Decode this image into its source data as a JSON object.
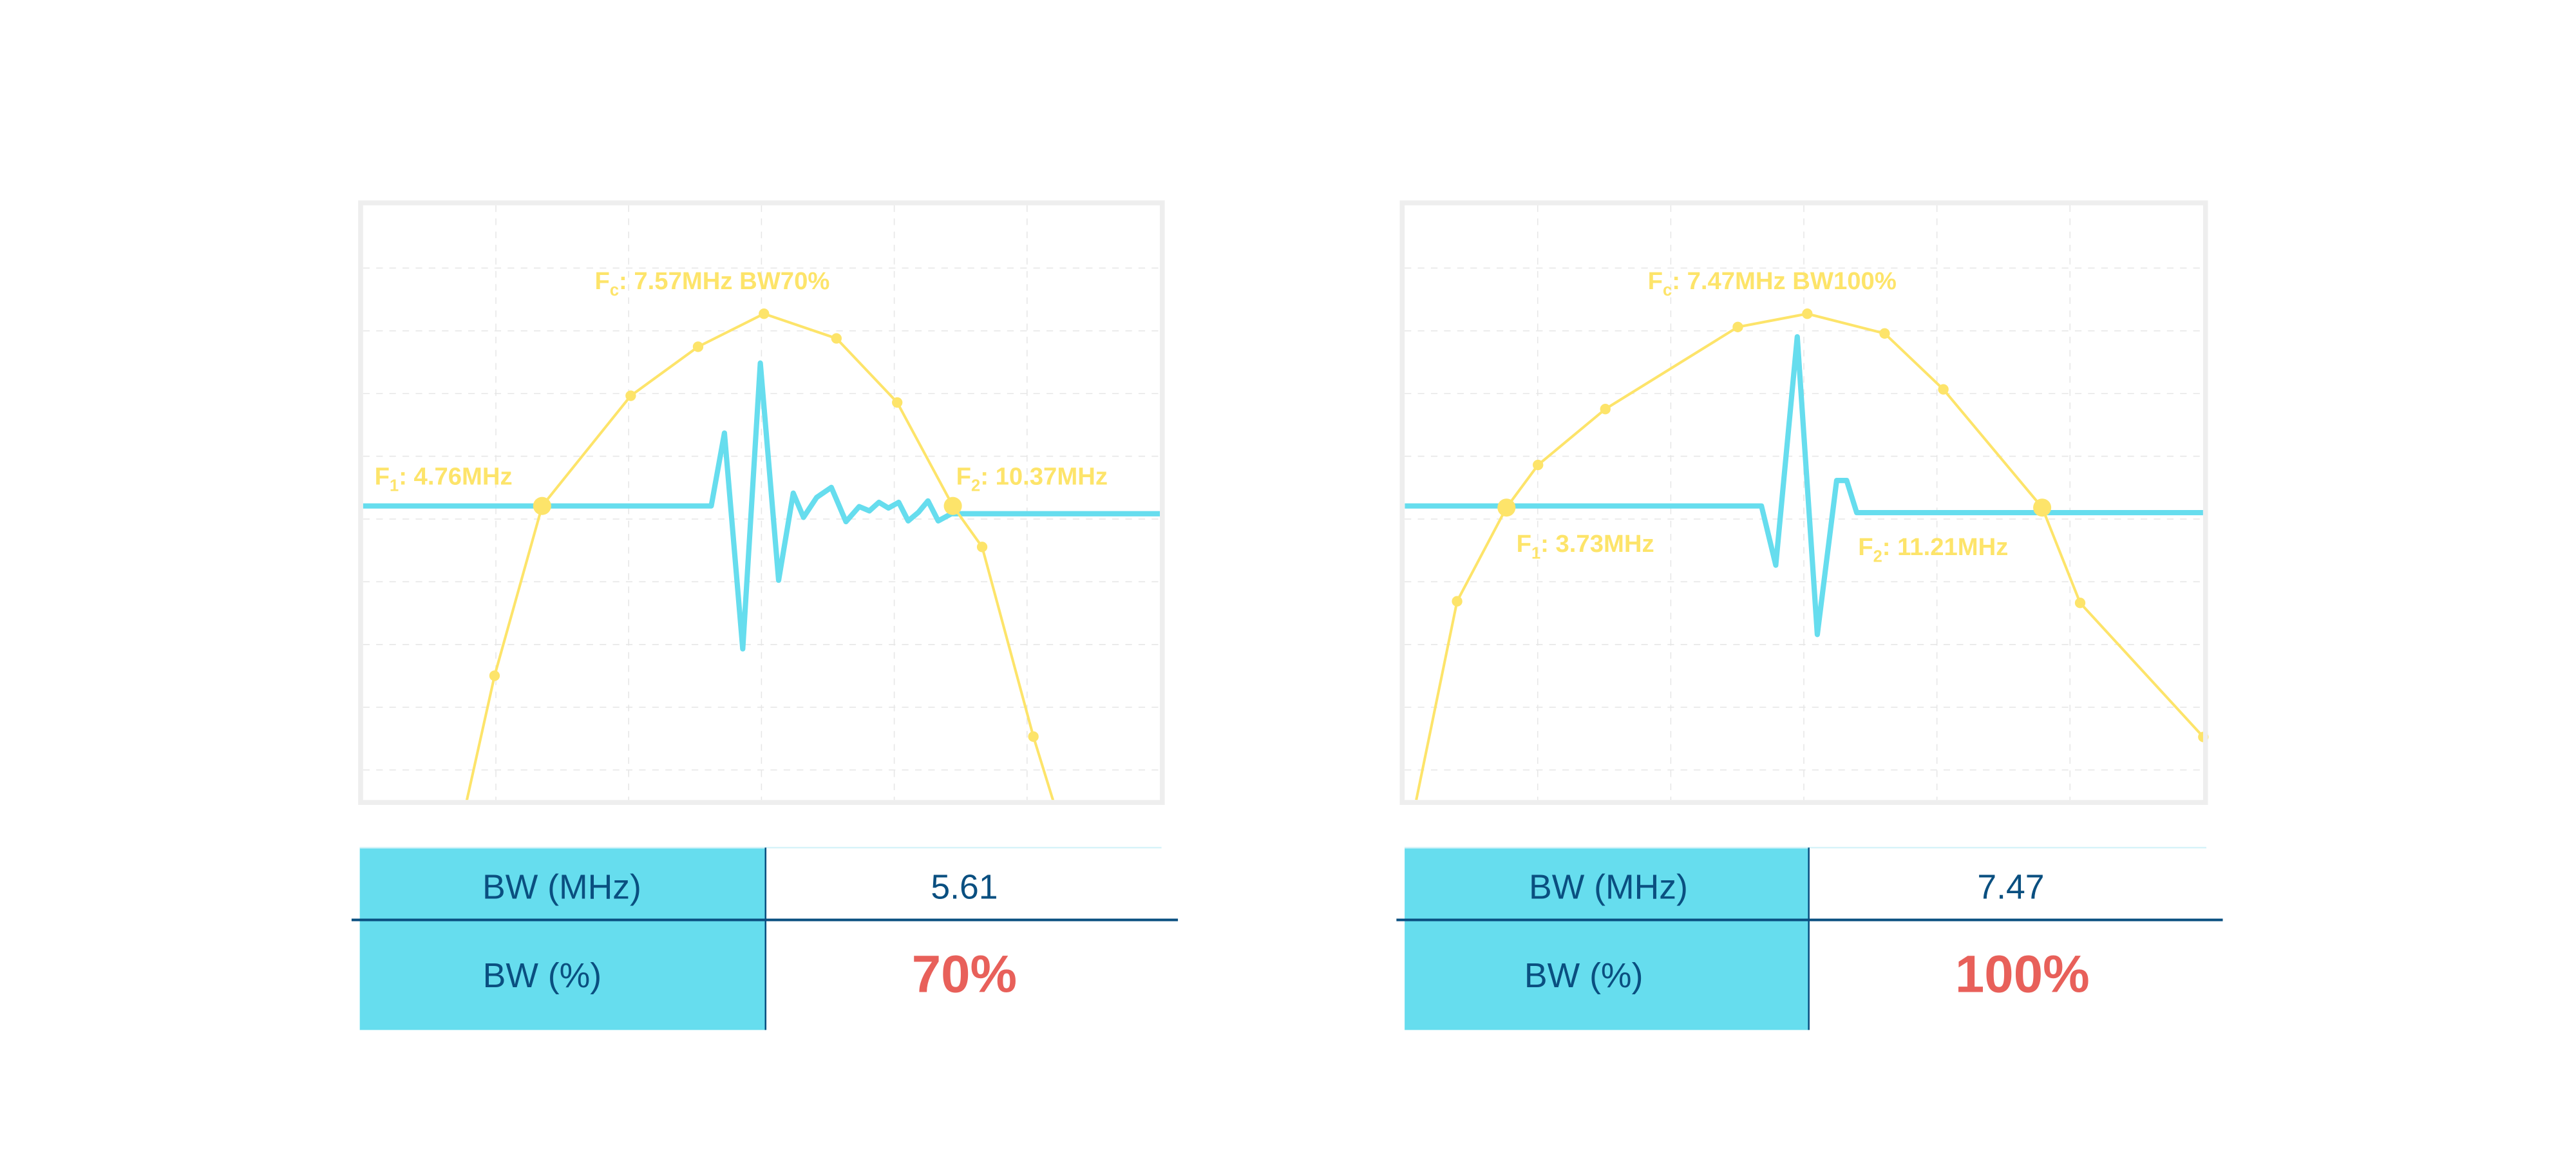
{
  "colors": {
    "response_curve": "#FDE46A",
    "pulse_waveform": "#66DDEE",
    "frame": "#EEEEEE",
    "grid": "#E6E6E6",
    "table_label_fill": "#66DDEE",
    "table_text": "#0A4F80",
    "bandwidth_percent": "#E8605A"
  },
  "chart_data": [
    {
      "type": "line",
      "title": "",
      "xlabel": "",
      "ylabel": "",
      "grid": true,
      "x_unit": "MHz",
      "y_unit": "dB (relative, -6 dB at F1/F2)",
      "annotations": {
        "fc": {
          "main": "F",
          "sub": "c",
          "rest": ": 7.57MHz BW70%"
        },
        "f1": {
          "main": "F",
          "sub": "1",
          "rest": ": 4.76MHz"
        },
        "f2": {
          "main": "F",
          "sub": "2",
          "rest": ": 10.37MHz"
        }
      },
      "series": [
        {
          "kind": "frequency-response",
          "x": [
            3.73,
            4.11,
            4.76,
            5.97,
            6.89,
            7.79,
            8.78,
            9.61,
            10.37,
            10.77,
            11.47,
            11.74
          ],
          "y": [
            -15.2,
            -11.3,
            -6,
            -2.56,
            -1.03,
            0,
            -0.77,
            -2.77,
            -6,
            -7.28,
            -13.2,
            -15.2
          ],
          "markers": [
            false,
            true,
            true,
            true,
            true,
            true,
            true,
            true,
            true,
            true,
            true,
            false
          ],
          "highlight": [
            2,
            8
          ]
        },
        {
          "kind": "pulse",
          "x": [
            2.31,
            7.07,
            7.25,
            7.5,
            7.74,
            7.99,
            8.19,
            8.33,
            8.51,
            8.71,
            8.91,
            9.09,
            9.23,
            9.36,
            9.49,
            9.63,
            9.76,
            9.9,
            10.03,
            10.17,
            10.35,
            13.2
          ],
          "y": [
            0,
            0,
            0.51,
            -1.0,
            1.0,
            -0.52,
            0.09,
            -0.08,
            0.06,
            0.13,
            -0.11,
            0.03,
            0,
            0.06,
            0.02,
            0.06,
            -0.07,
            -0.01,
            0.07,
            -0.07,
            -0.02,
            -0.02
          ]
        }
      ],
      "table": {
        "rows": [
          {
            "label": "BW (MHz)",
            "value": "5.61"
          },
          {
            "label": "BW (%)",
            "value": "70%"
          }
        ]
      }
    },
    {
      "type": "line",
      "title": "",
      "xlabel": "",
      "ylabel": "",
      "grid": true,
      "x_unit": "MHz",
      "y_unit": "dB (relative, -6 dB at F1/F2)",
      "annotations": {
        "fc": {
          "main": "F",
          "sub": "c",
          "rest": ": 7.47MHz BW100%"
        },
        "f1": {
          "main": "F",
          "sub": "1",
          "rest": ": 3.73MHz"
        },
        "f2": {
          "main": "F",
          "sub": "2",
          "rest": ": 11.21MHz"
        }
      },
      "series": [
        {
          "kind": "frequency-response",
          "x": [
            2.47,
            3.04,
            3.73,
            4.17,
            5.11,
            6.96,
            7.93,
            9.01,
            9.83,
            11.21,
            11.74,
            13.46
          ],
          "y": [
            -15.05,
            -8.9,
            -6,
            -4.68,
            -2.95,
            -0.41,
            0,
            -0.61,
            -2.34,
            -6,
            -8.95,
            -13.1
          ],
          "markers": [
            false,
            true,
            true,
            true,
            true,
            true,
            true,
            true,
            true,
            true,
            true,
            true
          ],
          "highlight": [
            2,
            9
          ]
        },
        {
          "kind": "pulse",
          "x": [
            2.31,
            7.29,
            7.49,
            7.79,
            8.07,
            8.34,
            8.48,
            8.62,
            13.46
          ],
          "y": [
            0,
            0,
            -0.35,
            1.0,
            -0.76,
            0.17,
            0.17,
            -0.02,
            -0.02
          ]
        }
      ],
      "table": {
        "rows": [
          {
            "label": "BW (MHz)",
            "value": "7.47"
          },
          {
            "label": "BW (%)",
            "value": "100%"
          }
        ]
      }
    }
  ]
}
